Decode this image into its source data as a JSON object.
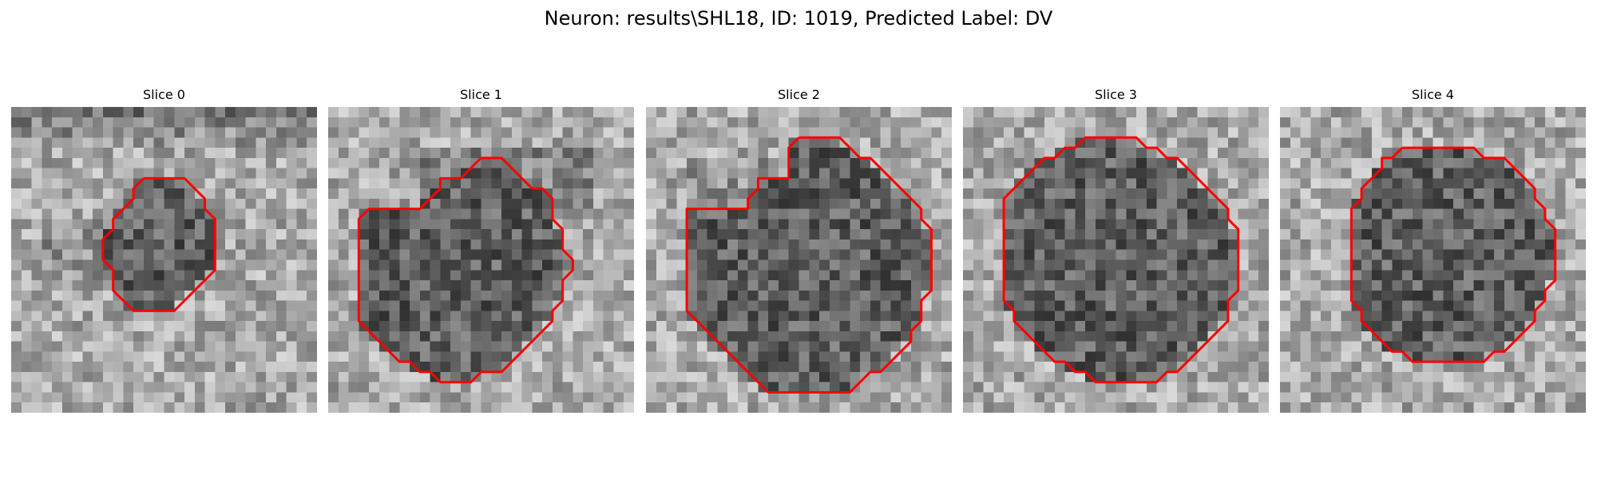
{
  "figure": {
    "title": "Neuron: results\\SHL18, ID: 1019, Predicted Label: DV"
  },
  "colors": {
    "contour": "#ff0000",
    "background": "#ffffff"
  },
  "grid_size": 30,
  "slices": [
    {
      "label": "Slice 0",
      "contour": [
        [
          13,
          7
        ],
        [
          14,
          7
        ],
        [
          15,
          7
        ],
        [
          16,
          7
        ],
        [
          17,
          7
        ],
        [
          18,
          8
        ],
        [
          19,
          9
        ],
        [
          19,
          10
        ],
        [
          20,
          11
        ],
        [
          20,
          12
        ],
        [
          20,
          13
        ],
        [
          20,
          14
        ],
        [
          20,
          15
        ],
        [
          20,
          16
        ],
        [
          19,
          17
        ],
        [
          18,
          18
        ],
        [
          17,
          19
        ],
        [
          16,
          20
        ],
        [
          15,
          20
        ],
        [
          14,
          20
        ],
        [
          13,
          20
        ],
        [
          12,
          20
        ],
        [
          11,
          19
        ],
        [
          10,
          18
        ],
        [
          10,
          17
        ],
        [
          10,
          16
        ],
        [
          9,
          15
        ],
        [
          9,
          14
        ],
        [
          9,
          13
        ],
        [
          10,
          12
        ],
        [
          10,
          11
        ],
        [
          11,
          10
        ],
        [
          12,
          9
        ],
        [
          12,
          8
        ],
        [
          13,
          7
        ]
      ]
    },
    {
      "label": "Slice 1",
      "contour": [
        [
          15,
          5
        ],
        [
          16,
          5
        ],
        [
          17,
          5
        ],
        [
          18,
          6
        ],
        [
          19,
          7
        ],
        [
          20,
          8
        ],
        [
          21,
          8
        ],
        [
          22,
          9
        ],
        [
          22,
          10
        ],
        [
          22,
          11
        ],
        [
          23,
          12
        ],
        [
          23,
          13
        ],
        [
          23,
          14
        ],
        [
          24,
          15
        ],
        [
          24,
          16
        ],
        [
          23,
          17
        ],
        [
          23,
          18
        ],
        [
          23,
          19
        ],
        [
          22,
          20
        ],
        [
          22,
          21
        ],
        [
          21,
          22
        ],
        [
          20,
          23
        ],
        [
          19,
          24
        ],
        [
          18,
          25
        ],
        [
          17,
          26
        ],
        [
          16,
          26
        ],
        [
          15,
          26
        ],
        [
          14,
          27
        ],
        [
          13,
          27
        ],
        [
          12,
          27
        ],
        [
          11,
          27
        ],
        [
          10,
          26
        ],
        [
          9,
          26
        ],
        [
          8,
          25
        ],
        [
          7,
          25
        ],
        [
          6,
          24
        ],
        [
          5,
          23
        ],
        [
          4,
          22
        ],
        [
          3,
          21
        ],
        [
          3,
          20
        ],
        [
          3,
          19
        ],
        [
          3,
          18
        ],
        [
          3,
          17
        ],
        [
          3,
          16
        ],
        [
          3,
          15
        ],
        [
          3,
          14
        ],
        [
          3,
          13
        ],
        [
          3,
          12
        ],
        [
          3,
          11
        ],
        [
          4,
          10
        ],
        [
          5,
          10
        ],
        [
          6,
          10
        ],
        [
          7,
          10
        ],
        [
          8,
          10
        ],
        [
          9,
          10
        ],
        [
          10,
          9
        ],
        [
          11,
          8
        ],
        [
          11,
          7
        ],
        [
          12,
          7
        ],
        [
          13,
          7
        ],
        [
          14,
          6
        ],
        [
          15,
          5
        ]
      ]
    },
    {
      "label": "Slice 2",
      "contour": [
        [
          15,
          3
        ],
        [
          16,
          3
        ],
        [
          17,
          3
        ],
        [
          18,
          3
        ],
        [
          19,
          3
        ],
        [
          20,
          4
        ],
        [
          21,
          5
        ],
        [
          22,
          5
        ],
        [
          23,
          6
        ],
        [
          24,
          7
        ],
        [
          25,
          8
        ],
        [
          26,
          9
        ],
        [
          27,
          10
        ],
        [
          27,
          11
        ],
        [
          28,
          12
        ],
        [
          28,
          13
        ],
        [
          28,
          14
        ],
        [
          28,
          15
        ],
        [
          28,
          16
        ],
        [
          28,
          17
        ],
        [
          28,
          18
        ],
        [
          27,
          19
        ],
        [
          27,
          20
        ],
        [
          27,
          21
        ],
        [
          26,
          22
        ],
        [
          26,
          23
        ],
        [
          25,
          24
        ],
        [
          24,
          25
        ],
        [
          23,
          26
        ],
        [
          22,
          26
        ],
        [
          21,
          27
        ],
        [
          20,
          28
        ],
        [
          19,
          28
        ],
        [
          18,
          28
        ],
        [
          17,
          28
        ],
        [
          16,
          28
        ],
        [
          15,
          28
        ],
        [
          14,
          28
        ],
        [
          13,
          28
        ],
        [
          12,
          28
        ],
        [
          11,
          27
        ],
        [
          10,
          26
        ],
        [
          9,
          25
        ],
        [
          8,
          24
        ],
        [
          7,
          23
        ],
        [
          6,
          22
        ],
        [
          5,
          21
        ],
        [
          4,
          20
        ],
        [
          4,
          19
        ],
        [
          4,
          18
        ],
        [
          4,
          17
        ],
        [
          4,
          16
        ],
        [
          4,
          15
        ],
        [
          4,
          14
        ],
        [
          4,
          13
        ],
        [
          4,
          12
        ],
        [
          4,
          11
        ],
        [
          4,
          10
        ],
        [
          5,
          10
        ],
        [
          6,
          10
        ],
        [
          7,
          10
        ],
        [
          8,
          10
        ],
        [
          9,
          10
        ],
        [
          10,
          10
        ],
        [
          10,
          9
        ],
        [
          11,
          8
        ],
        [
          11,
          7
        ],
        [
          12,
          7
        ],
        [
          13,
          7
        ],
        [
          14,
          7
        ],
        [
          14,
          6
        ],
        [
          14,
          5
        ],
        [
          14,
          4
        ],
        [
          15,
          3
        ]
      ]
    },
    {
      "label": "Slice 3",
      "contour": [
        [
          13,
          3
        ],
        [
          14,
          3
        ],
        [
          15,
          3
        ],
        [
          16,
          3
        ],
        [
          17,
          3
        ],
        [
          18,
          4
        ],
        [
          19,
          4
        ],
        [
          20,
          5
        ],
        [
          21,
          5
        ],
        [
          22,
          6
        ],
        [
          23,
          7
        ],
        [
          24,
          8
        ],
        [
          25,
          9
        ],
        [
          26,
          10
        ],
        [
          26,
          11
        ],
        [
          27,
          12
        ],
        [
          27,
          13
        ],
        [
          27,
          14
        ],
        [
          27,
          15
        ],
        [
          27,
          16
        ],
        [
          27,
          17
        ],
        [
          27,
          18
        ],
        [
          26,
          19
        ],
        [
          26,
          20
        ],
        [
          26,
          21
        ],
        [
          25,
          22
        ],
        [
          24,
          23
        ],
        [
          23,
          24
        ],
        [
          22,
          25
        ],
        [
          21,
          26
        ],
        [
          20,
          26
        ],
        [
          19,
          27
        ],
        [
          18,
          27
        ],
        [
          17,
          27
        ],
        [
          16,
          27
        ],
        [
          15,
          27
        ],
        [
          14,
          27
        ],
        [
          13,
          27
        ],
        [
          12,
          26
        ],
        [
          11,
          26
        ],
        [
          10,
          25
        ],
        [
          9,
          25
        ],
        [
          8,
          24
        ],
        [
          7,
          23
        ],
        [
          6,
          22
        ],
        [
          5,
          21
        ],
        [
          5,
          20
        ],
        [
          4,
          19
        ],
        [
          4,
          18
        ],
        [
          4,
          17
        ],
        [
          4,
          16
        ],
        [
          4,
          15
        ],
        [
          4,
          14
        ],
        [
          4,
          13
        ],
        [
          4,
          12
        ],
        [
          4,
          11
        ],
        [
          4,
          10
        ],
        [
          4,
          9
        ],
        [
          5,
          8
        ],
        [
          6,
          7
        ],
        [
          7,
          6
        ],
        [
          8,
          5
        ],
        [
          9,
          5
        ],
        [
          10,
          4
        ],
        [
          11,
          4
        ],
        [
          12,
          3
        ],
        [
          13,
          3
        ]
      ]
    },
    {
      "label": "Slice 4",
      "contour": [
        [
          12,
          4
        ],
        [
          13,
          4
        ],
        [
          14,
          4
        ],
        [
          15,
          4
        ],
        [
          16,
          4
        ],
        [
          17,
          4
        ],
        [
          18,
          4
        ],
        [
          19,
          4
        ],
        [
          20,
          5
        ],
        [
          21,
          5
        ],
        [
          22,
          5
        ],
        [
          23,
          6
        ],
        [
          24,
          7
        ],
        [
          25,
          8
        ],
        [
          25,
          9
        ],
        [
          26,
          10
        ],
        [
          26,
          11
        ],
        [
          27,
          12
        ],
        [
          27,
          13
        ],
        [
          27,
          14
        ],
        [
          27,
          15
        ],
        [
          27,
          16
        ],
        [
          27,
          17
        ],
        [
          26,
          18
        ],
        [
          26,
          19
        ],
        [
          25,
          20
        ],
        [
          25,
          21
        ],
        [
          24,
          22
        ],
        [
          23,
          23
        ],
        [
          22,
          24
        ],
        [
          21,
          24
        ],
        [
          20,
          25
        ],
        [
          19,
          25
        ],
        [
          18,
          25
        ],
        [
          17,
          25
        ],
        [
          16,
          25
        ],
        [
          15,
          25
        ],
        [
          14,
          25
        ],
        [
          13,
          25
        ],
        [
          12,
          24
        ],
        [
          11,
          24
        ],
        [
          10,
          23
        ],
        [
          9,
          22
        ],
        [
          8,
          21
        ],
        [
          8,
          20
        ],
        [
          7,
          19
        ],
        [
          7,
          18
        ],
        [
          7,
          17
        ],
        [
          7,
          16
        ],
        [
          7,
          15
        ],
        [
          7,
          14
        ],
        [
          7,
          13
        ],
        [
          7,
          12
        ],
        [
          7,
          11
        ],
        [
          7,
          10
        ],
        [
          8,
          9
        ],
        [
          8,
          8
        ],
        [
          9,
          7
        ],
        [
          10,
          6
        ],
        [
          10,
          5
        ],
        [
          11,
          5
        ],
        [
          12,
          4
        ]
      ]
    }
  ]
}
